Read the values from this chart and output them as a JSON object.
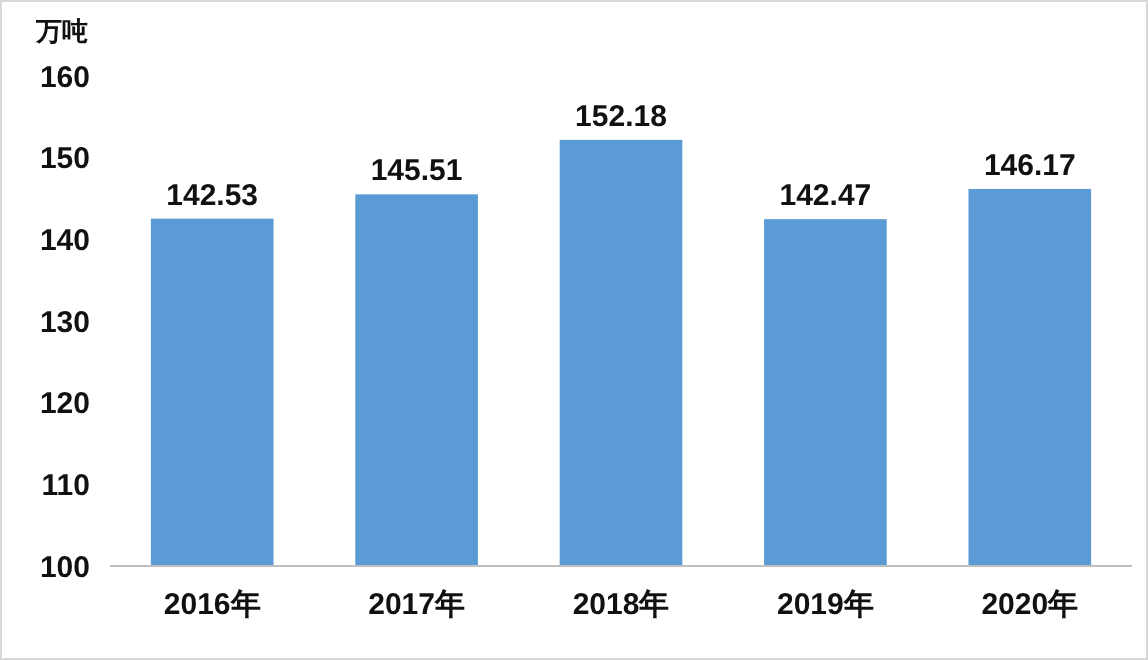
{
  "chart_data": {
    "type": "bar",
    "ylabel": "万吨",
    "categories": [
      "2016年",
      "2017年",
      "2018年",
      "2019年",
      "2020年"
    ],
    "values": [
      142.53,
      145.51,
      152.18,
      142.47,
      146.17
    ],
    "color": "#5b9bd5",
    "ylim": [
      100,
      160
    ],
    "yticks": [
      100,
      110,
      120,
      130,
      140,
      150,
      160
    ],
    "data_labels": true,
    "grid": false
  }
}
